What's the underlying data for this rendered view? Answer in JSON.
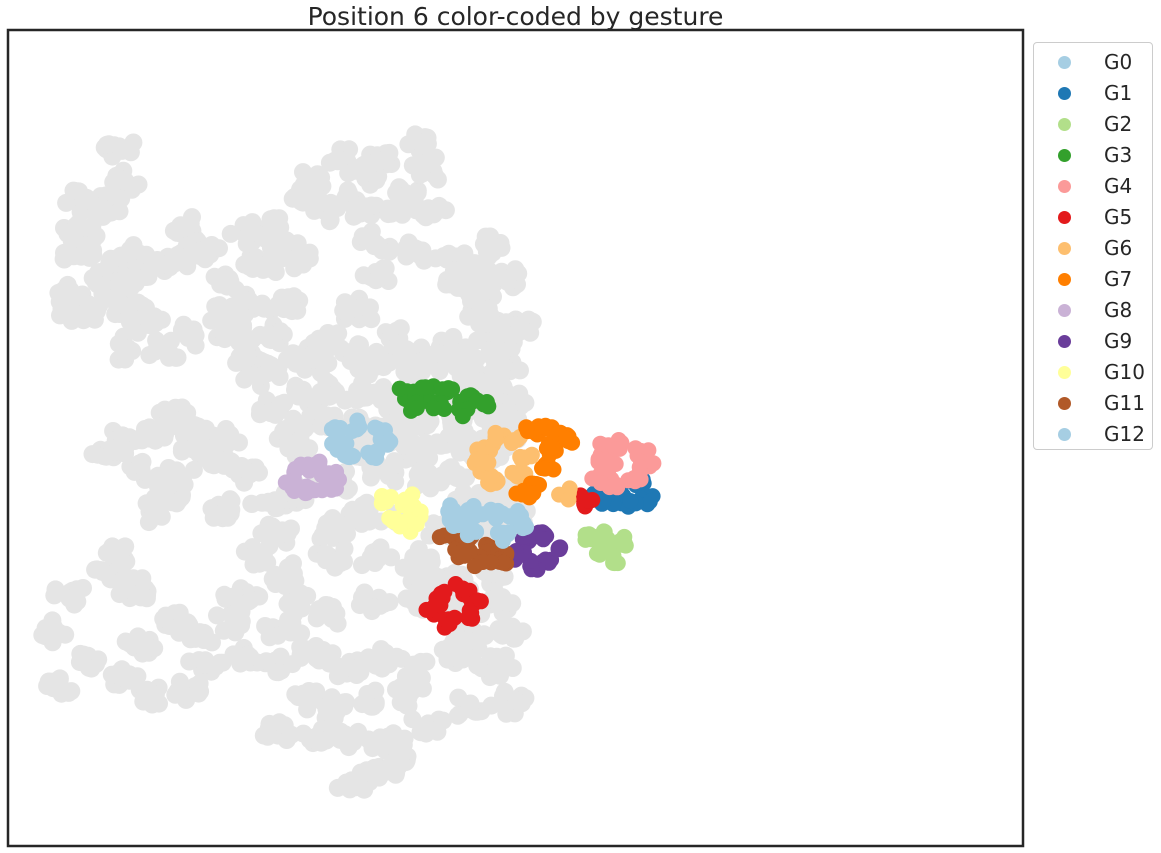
{
  "chart_data": {
    "type": "scatter",
    "title": "Position 6 color-coded by gesture",
    "xlabel": "",
    "ylabel": "",
    "axes_ticks": false,
    "grid": false,
    "legend_position": "outside-right-top",
    "background_color": "#e5e5e5",
    "background_clusters": [
      [
        44,
        90
      ],
      [
        49,
        125
      ],
      [
        37,
        152
      ],
      [
        20,
        148
      ],
      [
        36,
        160
      ],
      [
        19,
        182
      ],
      [
        20,
        210
      ],
      [
        8,
        263
      ],
      [
        10,
        248
      ],
      [
        22,
        272
      ],
      [
        39,
        230
      ],
      [
        43,
        247
      ],
      [
        52,
        218
      ],
      [
        63,
        229
      ],
      [
        55,
        207
      ],
      [
        52,
        266
      ],
      [
        50,
        310
      ],
      [
        65,
        282
      ],
      [
        85,
        218
      ],
      [
        92,
        178
      ],
      [
        105,
        203
      ],
      [
        80,
        313
      ],
      [
        100,
        295
      ],
      [
        125,
        275
      ],
      [
        122,
        240
      ],
      [
        140,
        265
      ],
      [
        145,
        325
      ],
      [
        150,
        220
      ],
      [
        165,
        262
      ],
      [
        155,
        178
      ],
      [
        139,
        188
      ],
      [
        164,
        202
      ],
      [
        175,
        212
      ],
      [
        176,
        147
      ],
      [
        188,
        123
      ],
      [
        195,
        159
      ],
      [
        210,
        105
      ],
      [
        210,
        150
      ],
      [
        225,
        123
      ],
      [
        222,
        155
      ],
      [
        240,
        160
      ],
      [
        251,
        140
      ],
      [
        235,
        105
      ],
      [
        265,
        82
      ],
      [
        270,
        114
      ],
      [
        270,
        160
      ],
      [
        260,
        205
      ],
      [
        233,
        196
      ],
      [
        235,
        230
      ],
      [
        284,
        212
      ],
      [
        294,
        243
      ],
      [
        306,
        261
      ],
      [
        300,
        225
      ],
      [
        318,
        200
      ],
      [
        325,
        233
      ],
      [
        220,
        270
      ],
      [
        245,
        300
      ],
      [
        265,
        320
      ],
      [
        260,
        342
      ],
      [
        215,
        315
      ],
      [
        201,
        305
      ],
      [
        155,
        295
      ],
      [
        140,
        322
      ],
      [
        175,
        318
      ],
      [
        188,
        328
      ],
      [
        230,
        328
      ],
      [
        270,
        330
      ],
      [
        130,
        298
      ],
      [
        150,
        340
      ],
      [
        310,
        280
      ],
      [
        290,
        310
      ],
      [
        320,
        303
      ],
      [
        325,
        330
      ],
      [
        335,
        285
      ],
      [
        300,
        330
      ],
      [
        310,
        352
      ],
      [
        200,
        360
      ],
      [
        230,
        360
      ],
      [
        250,
        372
      ],
      [
        280,
        370
      ],
      [
        300,
        380
      ],
      [
        330,
        365
      ],
      [
        180,
        360
      ],
      [
        160,
        380
      ],
      [
        170,
        400
      ],
      [
        195,
        390
      ],
      [
        220,
        395
      ],
      [
        245,
        405
      ],
      [
        263,
        388
      ],
      [
        290,
        395
      ],
      [
        320,
        390
      ],
      [
        330,
        400
      ],
      [
        220,
        420
      ],
      [
        260,
        425
      ],
      [
        290,
        418
      ],
      [
        320,
        410
      ],
      [
        310,
        432
      ],
      [
        178,
        420
      ],
      [
        140,
        445
      ],
      [
        115,
        432
      ],
      [
        120,
        410
      ],
      [
        100,
        420
      ],
      [
        100,
        398
      ],
      [
        85,
        385
      ],
      [
        68,
        403
      ],
      [
        45,
        412
      ],
      [
        40,
        430
      ],
      [
        60,
        445
      ],
      [
        88,
        450
      ],
      [
        82,
        470
      ],
      [
        68,
        490
      ],
      [
        125,
        490
      ],
      [
        155,
        480
      ],
      [
        180,
        470
      ],
      [
        205,
        455
      ],
      [
        240,
        445
      ],
      [
        270,
        455
      ],
      [
        290,
        450
      ],
      [
        300,
        480
      ],
      [
        320,
        470
      ],
      [
        330,
        495
      ],
      [
        310,
        510
      ],
      [
        280,
        510
      ],
      [
        250,
        498
      ],
      [
        220,
        490
      ],
      [
        200,
        510
      ],
      [
        160,
        515
      ],
      [
        145,
        540
      ],
      [
        170,
        560
      ],
      [
        200,
        540
      ],
      [
        230,
        540
      ],
      [
        260,
        540
      ],
      [
        270,
        560
      ],
      [
        290,
        570
      ],
      [
        320,
        560
      ],
      [
        320,
        590
      ],
      [
        295,
        600
      ],
      [
        265,
        590
      ],
      [
        230,
        590
      ],
      [
        200,
        600
      ],
      [
        175,
        590
      ],
      [
        165,
        620
      ],
      [
        130,
        610
      ],
      [
        105,
        625
      ],
      [
        85,
        610
      ],
      [
        60,
        640
      ],
      [
        50,
        670
      ],
      [
        70,
        690
      ],
      [
        95,
        685
      ],
      [
        110,
        660
      ],
      [
        140,
        650
      ],
      [
        160,
        660
      ],
      [
        190,
        645
      ],
      [
        210,
        660
      ],
      [
        240,
        650
      ],
      [
        260,
        665
      ],
      [
        290,
        650
      ],
      [
        300,
        630
      ],
      [
        330,
        620
      ],
      [
        320,
        660
      ],
      [
        255,
        690
      ],
      [
        230,
        700
      ],
      [
        200,
        705
      ],
      [
        180,
        695
      ],
      [
        160,
        730
      ],
      [
        190,
        740
      ],
      [
        210,
        735
      ],
      [
        240,
        740
      ],
      [
        270,
        725
      ],
      [
        300,
        705
      ],
      [
        330,
        700
      ],
      [
        215,
        785
      ],
      [
        235,
        775
      ],
      [
        250,
        760
      ],
      [
        45,
        540
      ],
      [
        40,
        560
      ],
      [
        10,
        580
      ],
      [
        58,
        575
      ],
      [
        0,
        620
      ],
      [
        20,
        650
      ],
      [
        0,
        680
      ],
      [
        135,
        585
      ]
    ],
    "background_clusters_note": "",
    "series": [
      {
        "name": "G0",
        "color": "#a6cee3",
        "points": []
      },
      {
        "name": "G1",
        "color": "#1f78b4",
        "points": [
          [
            395,
            470
          ],
          [
            410,
            465
          ],
          [
            425,
            460
          ],
          [
            430,
            475
          ],
          [
            415,
            480
          ],
          [
            400,
            478
          ]
        ]
      },
      {
        "name": "G2",
        "color": "#b2df8a",
        "points": [
          [
            388,
            520
          ],
          [
            400,
            515
          ],
          [
            410,
            525
          ],
          [
            395,
            535
          ],
          [
            405,
            540
          ]
        ]
      },
      {
        "name": "G3",
        "color": "#33a02c",
        "points": [
          [
            255,
            360
          ],
          [
            270,
            355
          ],
          [
            285,
            358
          ],
          [
            300,
            362
          ],
          [
            310,
            372
          ],
          [
            295,
            378
          ],
          [
            275,
            376
          ],
          [
            260,
            372
          ]
        ]
      },
      {
        "name": "G4",
        "color": "#fb9a99",
        "points": [
          [
            395,
            420
          ],
          [
            410,
            415
          ],
          [
            425,
            425
          ],
          [
            430,
            440
          ],
          [
            420,
            455
          ],
          [
            405,
            460
          ],
          [
            395,
            450
          ],
          [
            400,
            435
          ]
        ]
      },
      {
        "name": "G5",
        "color": "#e31a1c",
        "points": [
          [
            280,
            580
          ],
          [
            295,
            575
          ],
          [
            305,
            590
          ],
          [
            300,
            605
          ],
          [
            285,
            610
          ],
          [
            275,
            598
          ],
          [
            386,
            478
          ]
        ]
      },
      {
        "name": "G6",
        "color": "#fdbf6f",
        "points": [
          [
            310,
            420
          ],
          [
            320,
            410
          ],
          [
            335,
            412
          ],
          [
            340,
            430
          ],
          [
            335,
            450
          ],
          [
            320,
            455
          ],
          [
            308,
            440
          ],
          [
            370,
            472
          ]
        ]
      },
      {
        "name": "G7",
        "color": "#ff7f00",
        "points": [
          [
            345,
            400
          ],
          [
            355,
            395
          ],
          [
            365,
            405
          ],
          [
            360,
            420
          ],
          [
            355,
            440
          ],
          [
            350,
            460
          ],
          [
            340,
            470
          ],
          [
            370,
            410
          ]
        ]
      },
      {
        "name": "G8",
        "color": "#cab2d6",
        "points": [
          [
            175,
            445
          ],
          [
            190,
            440
          ],
          [
            200,
            450
          ],
          [
            198,
            465
          ],
          [
            185,
            470
          ],
          [
            172,
            460
          ]
        ]
      },
      {
        "name": "G9",
        "color": "#6a3d9a",
        "points": [
          [
            340,
            520
          ],
          [
            355,
            515
          ],
          [
            365,
            530
          ],
          [
            355,
            545
          ],
          [
            345,
            548
          ],
          [
            335,
            535
          ]
        ]
      },
      {
        "name": "G10",
        "color": "#ffff99",
        "points": [
          [
            240,
            480
          ],
          [
            255,
            478
          ],
          [
            265,
            490
          ],
          [
            260,
            505
          ],
          [
            245,
            500
          ]
        ]
      },
      {
        "name": "G11",
        "color": "#b15928",
        "points": [
          [
            285,
            515
          ],
          [
            300,
            520
          ],
          [
            315,
            530
          ],
          [
            325,
            540
          ],
          [
            310,
            545
          ],
          [
            295,
            535
          ]
        ]
      },
      {
        "name": "G12",
        "color": "#a6cee3",
        "points": [
          [
            205,
            400
          ],
          [
            220,
            395
          ],
          [
            235,
            402
          ],
          [
            240,
            415
          ],
          [
            230,
            430
          ],
          [
            215,
            428
          ],
          [
            205,
            415
          ],
          [
            290,
            490
          ],
          [
            305,
            492
          ],
          [
            320,
            490
          ],
          [
            335,
            495
          ],
          [
            340,
            505
          ],
          [
            325,
            515
          ],
          [
            305,
            512
          ],
          [
            290,
            505
          ]
        ]
      }
    ]
  }
}
